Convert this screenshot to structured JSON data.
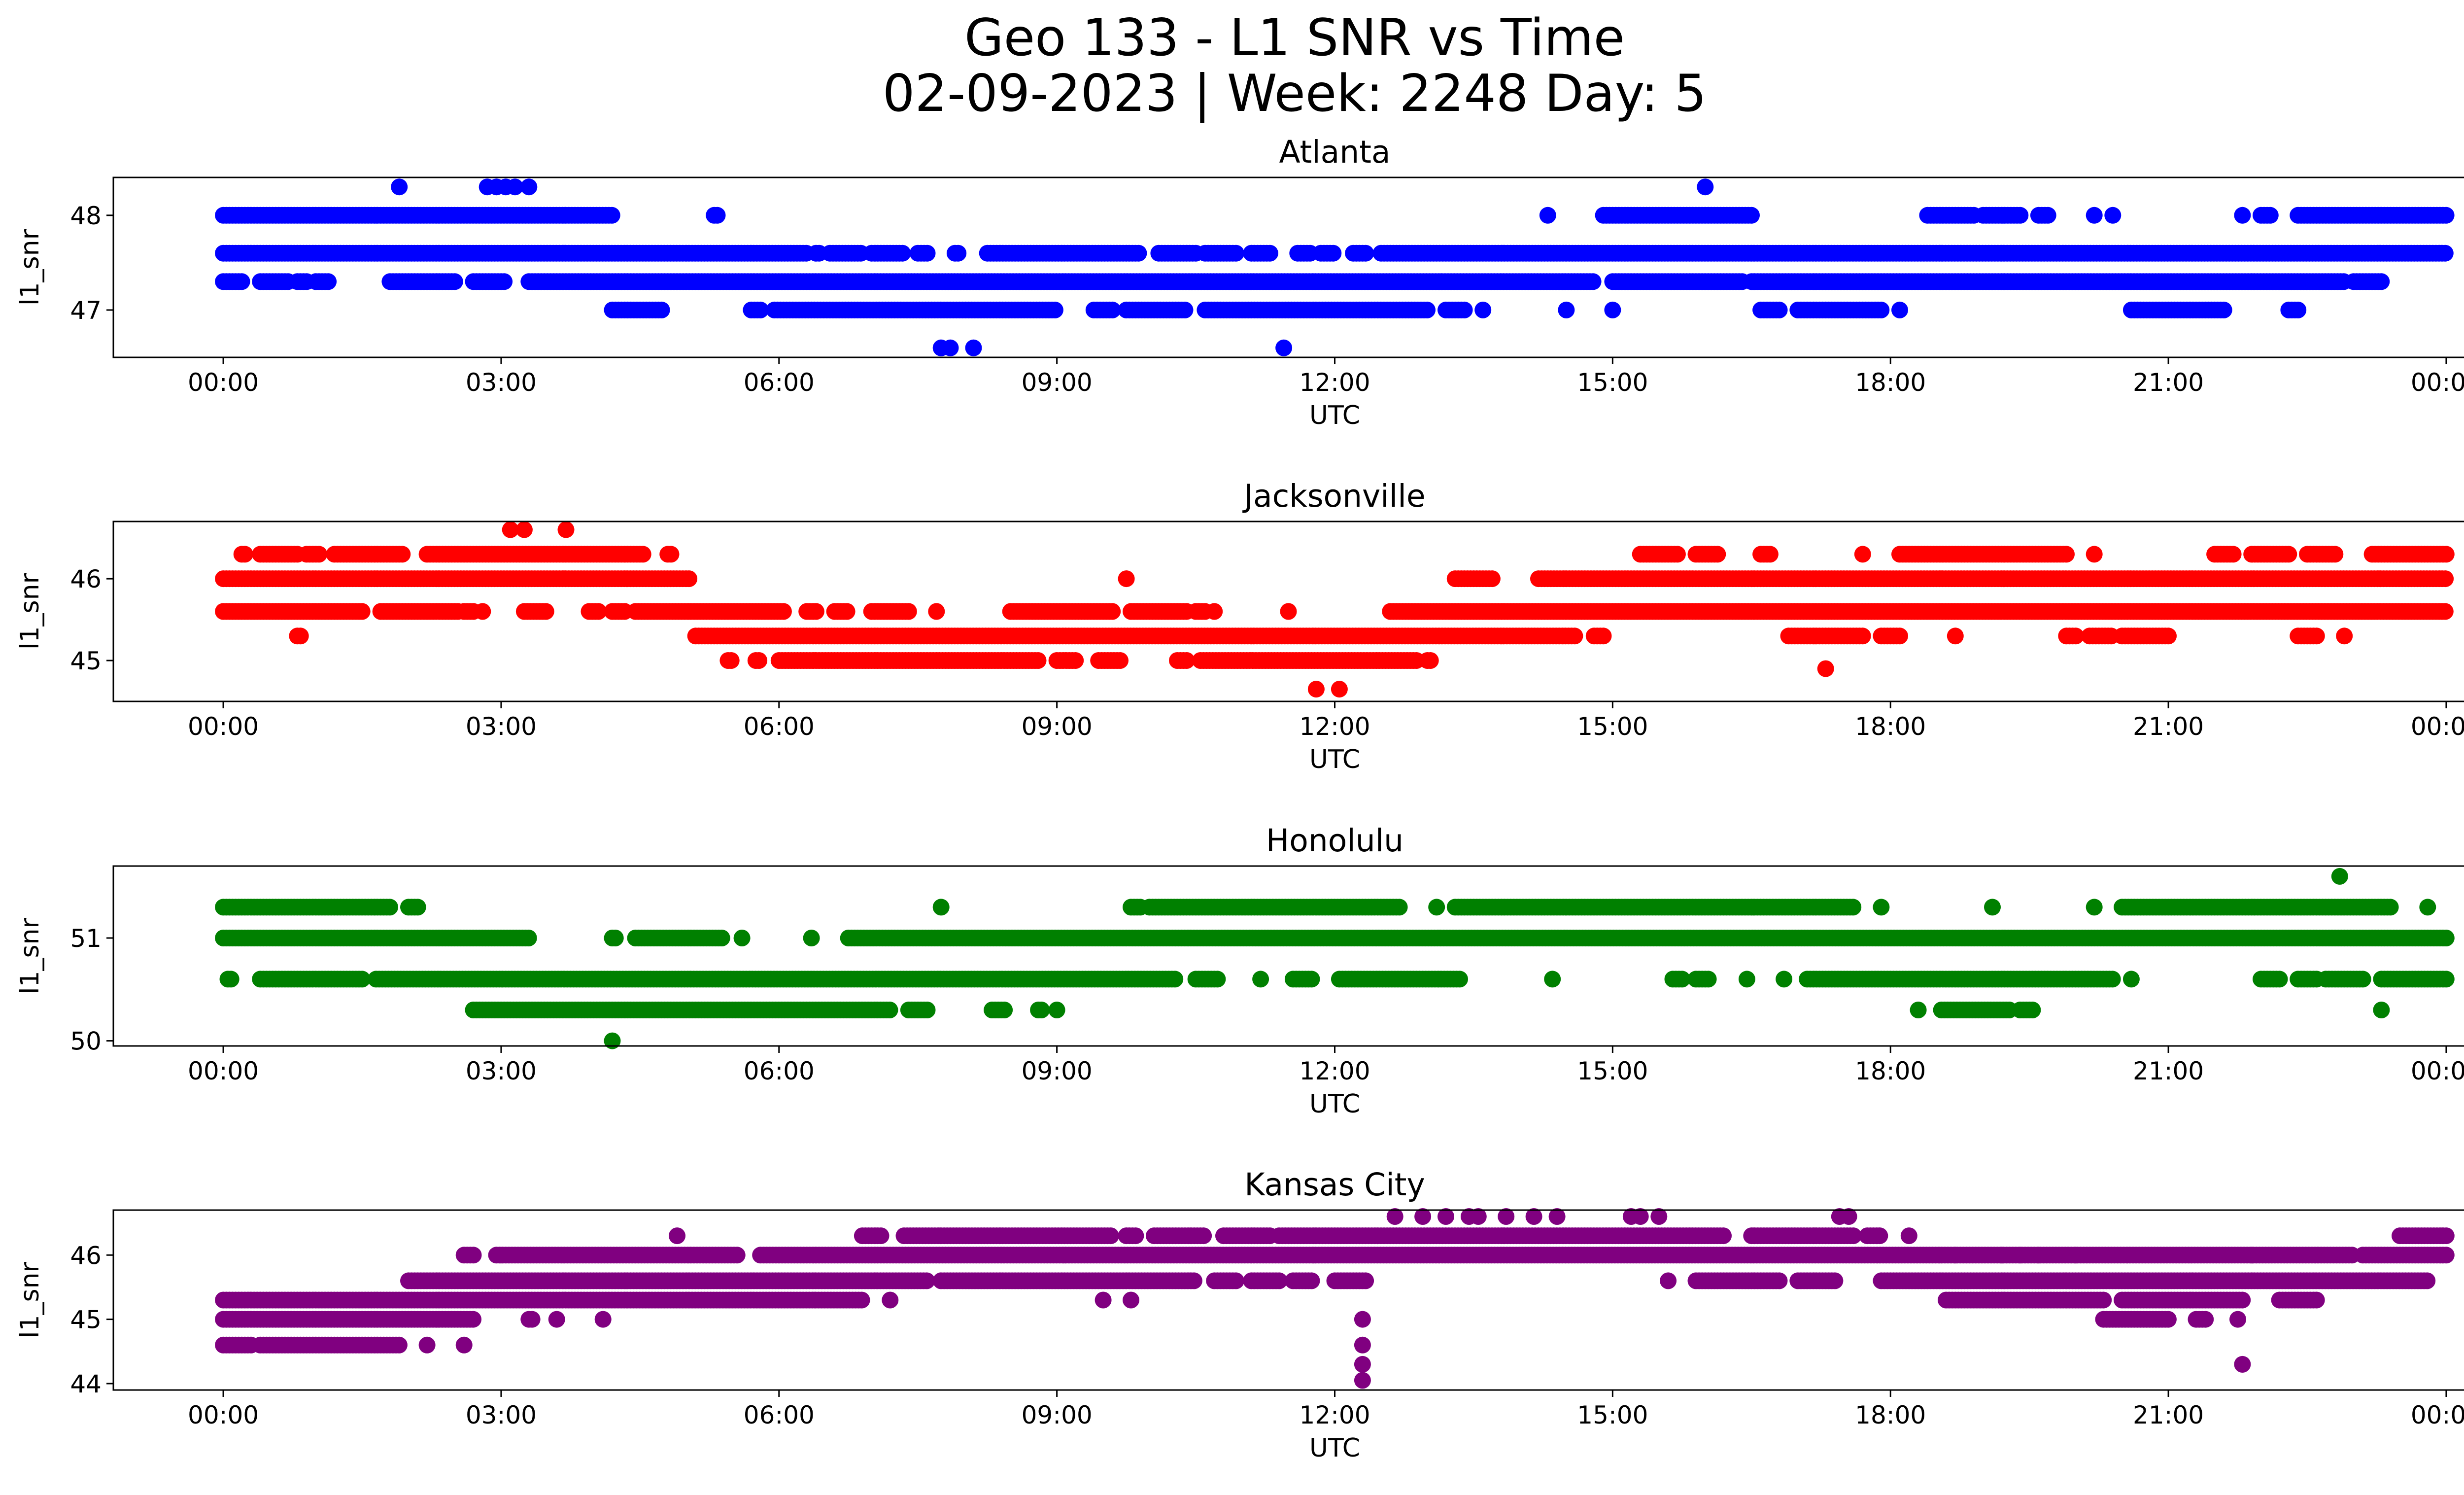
{
  "figure": {
    "title_line1": "Geo 133 - L1 SNR vs Time",
    "title_line2": "02-09-2023 | Week: 2248 Day: 5"
  },
  "chart_data": [
    {
      "type": "scatter",
      "title": "Atlanta",
      "xlabel": "UTC",
      "ylabel": "l1_snr",
      "color": "#0000ff",
      "xlim": [
        0,
        24
      ],
      "ylim": [
        46.5,
        48.4
      ],
      "x_ticks": [
        "00:00",
        "03:00",
        "06:00",
        "09:00",
        "12:00",
        "15:00",
        "18:00",
        "21:00",
        "00:00"
      ],
      "y_ticks": [
        47,
        48
      ],
      "rows": [
        {
          "y": 48.3,
          "x": [
            1.9,
            2.85,
            2.95,
            3.05,
            3.15,
            3.3,
            16.0
          ]
        },
        {
          "y": 48.0,
          "spans": [
            [
              0.0,
              4.2
            ],
            [
              5.3,
              5.35
            ],
            [
              14.3,
              14.3
            ],
            [
              14.9,
              16.5
            ],
            [
              18.4,
              18.9
            ],
            [
              19.0,
              19.4
            ],
            [
              19.6,
              19.7
            ],
            [
              20.2,
              20.2
            ],
            [
              20.4,
              20.4
            ],
            [
              21.8,
              21.8
            ],
            [
              22.0,
              22.1
            ],
            [
              22.4,
              24.0
            ]
          ]
        },
        {
          "y": 47.6,
          "spans": [
            [
              0.0,
              6.3
            ],
            [
              6.4,
              6.45
            ],
            [
              6.55,
              6.9
            ],
            [
              7.0,
              7.35
            ],
            [
              7.5,
              7.6
            ],
            [
              7.9,
              7.95
            ],
            [
              8.25,
              9.9
            ],
            [
              10.1,
              10.5
            ],
            [
              10.6,
              10.95
            ],
            [
              11.1,
              11.3
            ],
            [
              11.6,
              11.75
            ],
            [
              11.85,
              12.0
            ],
            [
              12.2,
              12.35
            ],
            [
              12.5,
              24.0
            ]
          ]
        },
        {
          "y": 47.3,
          "spans": [
            [
              0.0,
              0.2
            ],
            [
              0.4,
              0.7
            ],
            [
              0.8,
              0.9
            ],
            [
              1.0,
              1.15
            ],
            [
              1.8,
              2.5
            ],
            [
              2.7,
              3.05
            ],
            [
              3.3,
              14.8
            ],
            [
              15.0,
              16.4
            ],
            [
              16.5,
              22.9
            ],
            [
              23.0,
              23.3
            ]
          ]
        },
        {
          "y": 47.0,
          "spans": [
            [
              4.2,
              4.75
            ],
            [
              5.7,
              5.8
            ],
            [
              5.95,
              9.0
            ],
            [
              9.4,
              9.6
            ],
            [
              9.75,
              10.4
            ],
            [
              10.6,
              13.0
            ],
            [
              13.2,
              13.4
            ],
            [
              13.6,
              13.6
            ],
            [
              14.5,
              14.5
            ],
            [
              15.0,
              15.0
            ],
            [
              16.6,
              16.8
            ],
            [
              17.0,
              17.9
            ],
            [
              18.1,
              18.1
            ],
            [
              20.6,
              21.6
            ],
            [
              22.3,
              22.4
            ]
          ]
        },
        {
          "y": 46.6,
          "x": [
            7.75,
            7.85,
            8.1,
            11.45
          ]
        }
      ]
    },
    {
      "type": "scatter",
      "title": "Jacksonville",
      "xlabel": "UTC",
      "ylabel": "l1_snr",
      "color": "#ff0000",
      "xlim": [
        0,
        24
      ],
      "ylim": [
        44.5,
        46.7
      ],
      "x_ticks": [
        "00:00",
        "03:00",
        "06:00",
        "09:00",
        "12:00",
        "15:00",
        "18:00",
        "21:00",
        "00:00"
      ],
      "y_ticks": [
        45,
        46
      ],
      "rows": [
        {
          "y": 46.6,
          "x": [
            3.1,
            3.25,
            3.7
          ]
        },
        {
          "y": 46.3,
          "spans": [
            [
              0.2,
              0.25
            ],
            [
              0.4,
              0.8
            ],
            [
              0.9,
              1.05
            ],
            [
              1.2,
              1.95
            ],
            [
              2.2,
              4.55
            ],
            [
              4.8,
              4.85
            ],
            [
              15.3,
              15.7
            ],
            [
              15.9,
              16.15
            ],
            [
              16.6,
              16.7
            ],
            [
              17.7,
              17.7
            ],
            [
              18.1,
              19.9
            ],
            [
              20.2,
              20.2
            ],
            [
              21.5,
              21.7
            ],
            [
              21.9,
              22.3
            ],
            [
              22.5,
              22.8
            ],
            [
              23.2,
              24.0
            ]
          ]
        },
        {
          "y": 46.0,
          "spans": [
            [
              0.0,
              5.05
            ],
            [
              9.75,
              9.75
            ],
            [
              13.3,
              13.7
            ],
            [
              14.2,
              24.0
            ]
          ]
        },
        {
          "y": 45.6,
          "spans": [
            [
              0.0,
              1.5
            ],
            [
              1.7,
              2.55
            ],
            [
              2.6,
              2.7
            ],
            [
              2.8,
              2.8
            ],
            [
              3.25,
              3.5
            ],
            [
              3.95,
              4.05
            ],
            [
              4.2,
              4.35
            ],
            [
              4.45,
              6.05
            ],
            [
              6.3,
              6.4
            ],
            [
              6.6,
              6.75
            ],
            [
              7.0,
              7.4
            ],
            [
              7.7,
              7.7
            ],
            [
              8.5,
              9.6
            ],
            [
              9.8,
              10.4
            ],
            [
              10.5,
              10.6
            ],
            [
              10.7,
              10.7
            ],
            [
              11.5,
              11.5
            ],
            [
              12.6,
              24.0
            ]
          ]
        },
        {
          "y": 45.3,
          "spans": [
            [
              0.8,
              0.85
            ],
            [
              5.1,
              14.6
            ],
            [
              14.8,
              14.9
            ],
            [
              16.9,
              17.7
            ],
            [
              17.9,
              18.1
            ],
            [
              18.7,
              18.7
            ],
            [
              19.9,
              20.0
            ],
            [
              20.15,
              20.4
            ],
            [
              20.5,
              21.0
            ],
            [
              22.4,
              22.6
            ],
            [
              22.9,
              22.9
            ]
          ]
        },
        {
          "y": 45.0,
          "spans": [
            [
              5.45,
              5.5
            ],
            [
              5.75,
              5.8
            ],
            [
              6.0,
              8.8
            ],
            [
              9.0,
              9.2
            ],
            [
              9.45,
              9.7
            ],
            [
              10.3,
              10.4
            ],
            [
              10.55,
              12.9
            ],
            [
              13.0,
              13.05
            ]
          ]
        },
        {
          "y": 44.65,
          "x": [
            11.8,
            12.05
          ]
        },
        {
          "y": 44.9,
          "x": [
            17.3
          ]
        }
      ]
    },
    {
      "type": "scatter",
      "title": "Honolulu",
      "xlabel": "UTC",
      "ylabel": "l1_snr",
      "color": "#008000",
      "xlim": [
        0,
        24
      ],
      "ylim": [
        49.95,
        51.7
      ],
      "x_ticks": [
        "00:00",
        "03:00",
        "06:00",
        "09:00",
        "12:00",
        "15:00",
        "18:00",
        "21:00",
        "00:00"
      ],
      "y_ticks": [
        50,
        51
      ],
      "rows": [
        {
          "y": 51.6,
          "x": [
            22.85
          ]
        },
        {
          "y": 51.3,
          "spans": [
            [
              0.0,
              1.8
            ],
            [
              2.0,
              2.1
            ],
            [
              7.75,
              7.75
            ],
            [
              9.8,
              9.9
            ],
            [
              10.0,
              12.7
            ],
            [
              13.1,
              13.1
            ],
            [
              13.3,
              17.6
            ],
            [
              17.9,
              17.9
            ],
            [
              19.1,
              19.1
            ],
            [
              20.2,
              20.2
            ],
            [
              20.5,
              23.4
            ],
            [
              23.8,
              23.8
            ]
          ]
        },
        {
          "y": 51.0,
          "spans": [
            [
              0.0,
              3.3
            ],
            [
              4.2,
              4.25
            ],
            [
              4.45,
              5.4
            ],
            [
              5.6,
              5.6
            ],
            [
              6.35,
              6.35
            ],
            [
              6.75,
              24.0
            ]
          ]
        },
        {
          "y": 50.6,
          "spans": [
            [
              0.05,
              0.1
            ],
            [
              0.4,
              1.5
            ],
            [
              1.65,
              10.3
            ],
            [
              10.5,
              10.75
            ],
            [
              11.2,
              11.2
            ],
            [
              11.55,
              11.75
            ],
            [
              12.05,
              13.35
            ],
            [
              14.35,
              14.35
            ],
            [
              15.65,
              15.75
            ],
            [
              15.9,
              16.05
            ],
            [
              16.45,
              16.45
            ],
            [
              16.85,
              16.85
            ],
            [
              17.1,
              20.4
            ],
            [
              20.6,
              20.6
            ],
            [
              22.0,
              22.2
            ],
            [
              22.4,
              22.6
            ],
            [
              22.7,
              23.1
            ],
            [
              23.3,
              24.0
            ]
          ]
        },
        {
          "y": 50.3,
          "spans": [
            [
              2.7,
              7.2
            ],
            [
              7.4,
              7.6
            ],
            [
              8.3,
              8.45
            ],
            [
              8.8,
              8.85
            ],
            [
              9.0,
              9.0
            ],
            [
              18.3,
              18.3
            ],
            [
              18.55,
              19.3
            ],
            [
              19.4,
              19.55
            ]
          ]
        },
        {
          "y": 50.3,
          "x": [
            23.3
          ]
        },
        {
          "y": 50.0,
          "x": [
            4.2
          ]
        }
      ]
    },
    {
      "type": "scatter",
      "title": "Kansas City",
      "xlabel": "UTC",
      "ylabel": "l1_snr",
      "color": "#800080",
      "xlim": [
        0,
        24
      ],
      "ylim": [
        43.9,
        46.7
      ],
      "x_ticks": [
        "00:00",
        "03:00",
        "06:00",
        "09:00",
        "12:00",
        "15:00",
        "18:00",
        "21:00",
        "00:00"
      ],
      "y_ticks": [
        44,
        45,
        46
      ],
      "rows": [
        {
          "y": 46.6,
          "x": [
            12.65,
            12.95,
            13.2,
            13.45,
            13.55,
            13.85,
            14.15,
            14.4,
            15.2,
            15.3,
            15.5,
            17.45,
            17.55
          ]
        },
        {
          "y": 46.3,
          "spans": [
            [
              4.9,
              4.9
            ],
            [
              6.9,
              7.1
            ],
            [
              7.35,
              9.6
            ],
            [
              9.75,
              9.85
            ],
            [
              10.05,
              10.6
            ],
            [
              10.8,
              11.3
            ],
            [
              11.4,
              16.2
            ],
            [
              16.5,
              17.6
            ],
            [
              17.75,
              17.9
            ],
            [
              18.2,
              18.2
            ],
            [
              23.5,
              24.0
            ]
          ]
        },
        {
          "y": 46.0,
          "spans": [
            [
              2.6,
              2.7
            ],
            [
              2.95,
              5.55
            ],
            [
              5.8,
              23.0
            ],
            [
              23.1,
              24.0
            ]
          ]
        },
        {
          "y": 46.0,
          "x": [
            18.7,
            19.2,
            19.4,
            19.6,
            20.0,
            21.9
          ]
        },
        {
          "y": 45.6,
          "spans": [
            [
              2.0,
              7.6
            ],
            [
              7.75,
              10.5
            ],
            [
              10.7,
              10.95
            ],
            [
              11.1,
              11.4
            ],
            [
              11.55,
              11.75
            ],
            [
              12.0,
              12.35
            ],
            [
              15.6,
              15.6
            ],
            [
              15.9,
              16.8
            ],
            [
              17.0,
              17.4
            ],
            [
              17.9,
              23.8
            ]
          ]
        },
        {
          "y": 45.3,
          "spans": [
            [
              0.0,
              6.9
            ],
            [
              7.2,
              7.2
            ],
            [
              18.6,
              20.3
            ],
            [
              20.5,
              21.8
            ],
            [
              22.2,
              22.6
            ]
          ]
        },
        {
          "y": 45.3,
          "x": [
            9.5,
            9.8
          ]
        },
        {
          "y": 45.0,
          "spans": [
            [
              0.0,
              2.7
            ],
            [
              3.3,
              3.35
            ],
            [
              3.6,
              3.6
            ],
            [
              4.1,
              4.1
            ],
            [
              12.3,
              12.3
            ],
            [
              20.3,
              21.0
            ],
            [
              21.3,
              21.4
            ],
            [
              21.75,
              21.75
            ]
          ]
        },
        {
          "y": 44.6,
          "spans": [
            [
              0.0,
              0.3
            ],
            [
              0.4,
              1.9
            ],
            [
              2.2,
              2.2
            ],
            [
              2.6,
              2.6
            ],
            [
              12.3,
              12.3
            ]
          ]
        },
        {
          "y": 44.3,
          "x": [
            12.3,
            21.8
          ]
        },
        {
          "y": 44.05,
          "x": [
            12.3
          ]
        }
      ]
    }
  ]
}
